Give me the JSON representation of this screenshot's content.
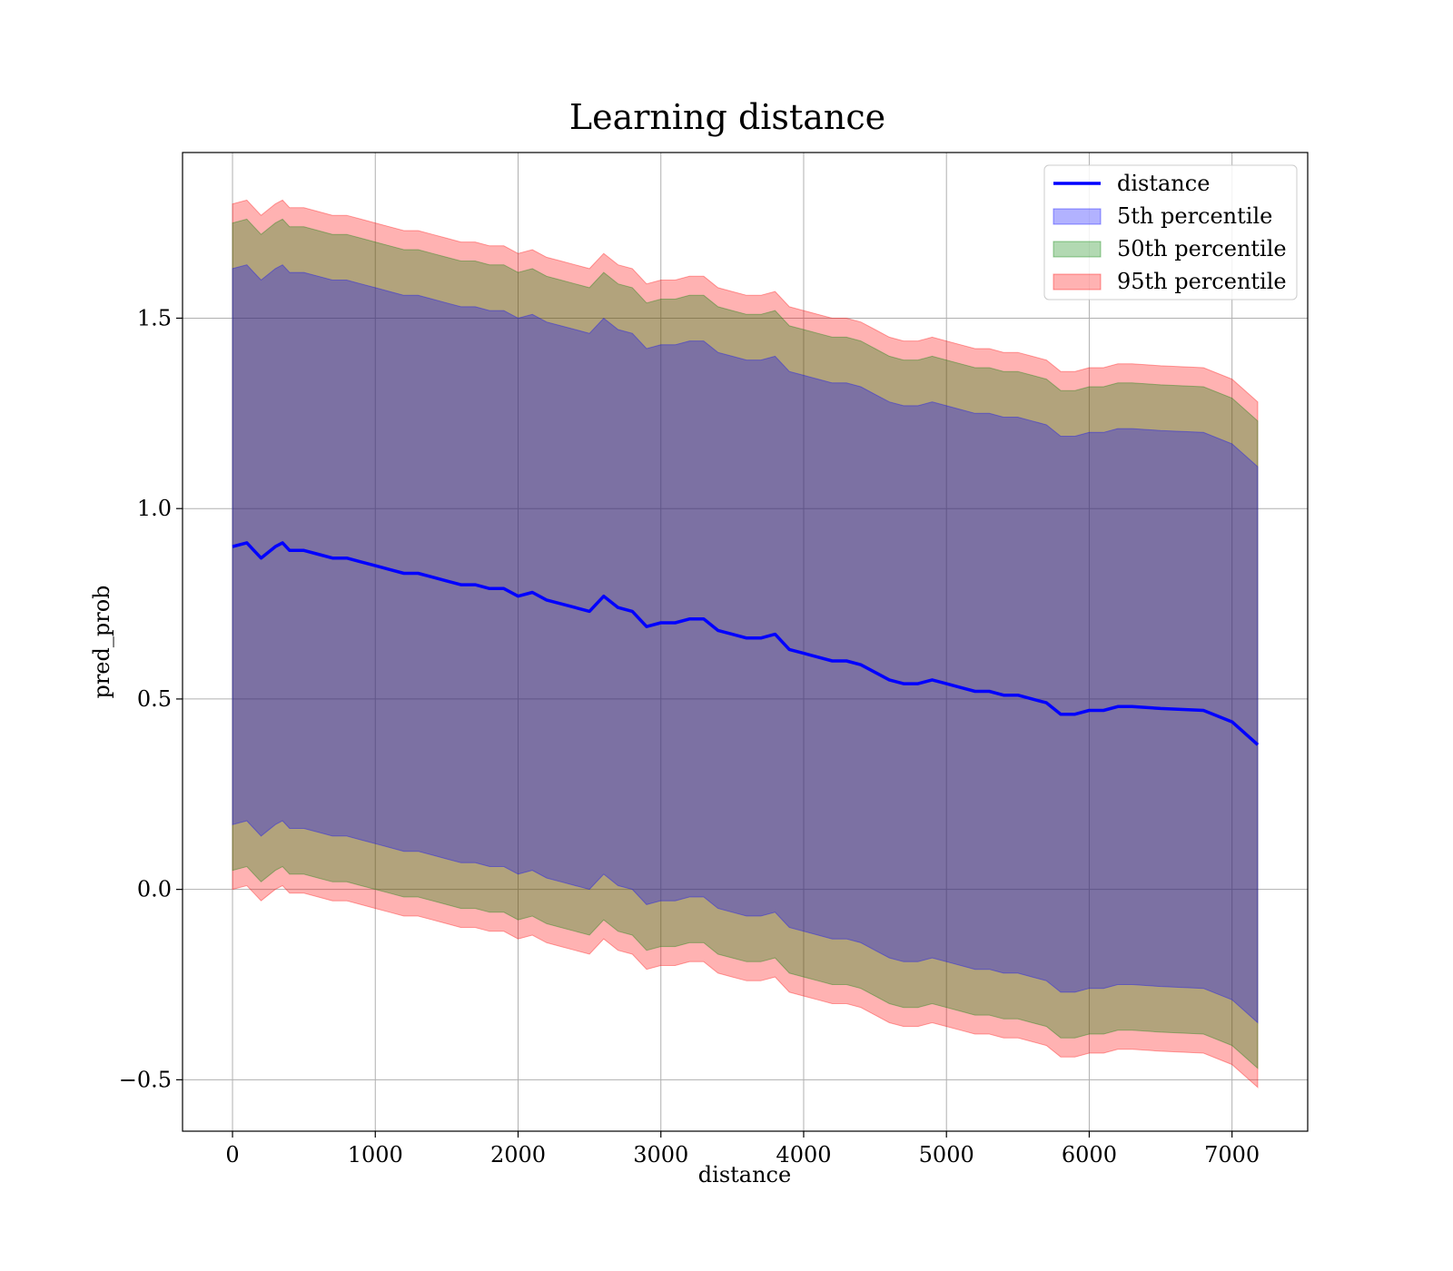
{
  "chart_data": {
    "type": "area",
    "title": "Learning distance",
    "xlabel": "distance",
    "ylabel": "pred_prob",
    "xlim": [
      -350,
      7530
    ],
    "ylim": [
      -0.635,
      1.935
    ],
    "xticks": [
      0,
      1000,
      2000,
      3000,
      4000,
      5000,
      6000,
      7000
    ],
    "xtick_labels": [
      "0",
      "1000",
      "2000",
      "3000",
      "4000",
      "5000",
      "6000",
      "7000"
    ],
    "yticks": [
      -0.5,
      0.0,
      0.5,
      1.0,
      1.5
    ],
    "ytick_labels": [
      "−0.5",
      "0.0",
      "0.5",
      "1.0",
      "1.5"
    ],
    "grid": true,
    "legend_position": "top-right",
    "x": [
      0,
      100,
      150,
      200,
      300,
      350,
      400,
      500,
      600,
      700,
      800,
      900,
      1000,
      1100,
      1200,
      1300,
      1400,
      1500,
      1600,
      1700,
      1800,
      1900,
      2000,
      2100,
      2200,
      2300,
      2400,
      2500,
      2600,
      2700,
      2800,
      2900,
      3000,
      3100,
      3200,
      3300,
      3400,
      3500,
      3600,
      3700,
      3800,
      3900,
      4000,
      4100,
      4200,
      4300,
      4400,
      4500,
      4600,
      4700,
      4800,
      4900,
      5000,
      5100,
      5200,
      5300,
      5400,
      5500,
      5600,
      5700,
      5800,
      5900,
      6000,
      6100,
      6200,
      6300,
      6500,
      6800,
      7000,
      7180
    ],
    "series": [
      {
        "name": "distance",
        "kind": "line",
        "color": "#0000ff",
        "values": [
          0.9,
          0.91,
          0.89,
          0.87,
          0.9,
          0.91,
          0.89,
          0.89,
          0.88,
          0.87,
          0.87,
          0.86,
          0.85,
          0.84,
          0.83,
          0.83,
          0.82,
          0.81,
          0.8,
          0.8,
          0.79,
          0.79,
          0.77,
          0.78,
          0.76,
          0.75,
          0.74,
          0.73,
          0.77,
          0.74,
          0.73,
          0.69,
          0.7,
          0.7,
          0.71,
          0.71,
          0.68,
          0.67,
          0.66,
          0.66,
          0.67,
          0.63,
          0.62,
          0.61,
          0.6,
          0.6,
          0.59,
          0.57,
          0.55,
          0.54,
          0.54,
          0.55,
          0.54,
          0.53,
          0.52,
          0.52,
          0.51,
          0.51,
          0.5,
          0.49,
          0.46,
          0.46,
          0.47,
          0.47,
          0.48,
          0.48,
          0.475,
          0.47,
          0.44,
          0.38
        ]
      },
      {
        "name": "5th percentile",
        "kind": "band",
        "color": "#0000ff",
        "lower": [
          0.17,
          0.18,
          0.16,
          0.14,
          0.17,
          0.18,
          0.16,
          0.16,
          0.15,
          0.14,
          0.14,
          0.13,
          0.12,
          0.11,
          0.1,
          0.1,
          0.09,
          0.08,
          0.07,
          0.07,
          0.06,
          0.06,
          0.04,
          0.05,
          0.03,
          0.02,
          0.01,
          0.0,
          0.04,
          0.01,
          0.0,
          -0.04,
          -0.03,
          -0.03,
          -0.02,
          -0.02,
          -0.05,
          -0.06,
          -0.07,
          -0.07,
          -0.06,
          -0.1,
          -0.11,
          -0.12,
          -0.13,
          -0.13,
          -0.14,
          -0.16,
          -0.18,
          -0.19,
          -0.19,
          -0.18,
          -0.19,
          -0.2,
          -0.21,
          -0.21,
          -0.22,
          -0.22,
          -0.23,
          -0.24,
          -0.27,
          -0.27,
          -0.26,
          -0.26,
          -0.25,
          -0.25,
          -0.255,
          -0.26,
          -0.29,
          -0.35
        ],
        "upper": [
          1.63,
          1.64,
          1.62,
          1.6,
          1.63,
          1.64,
          1.62,
          1.62,
          1.61,
          1.6,
          1.6,
          1.59,
          1.58,
          1.57,
          1.56,
          1.56,
          1.55,
          1.54,
          1.53,
          1.53,
          1.52,
          1.52,
          1.5,
          1.51,
          1.49,
          1.48,
          1.47,
          1.46,
          1.5,
          1.47,
          1.46,
          1.42,
          1.43,
          1.43,
          1.44,
          1.44,
          1.41,
          1.4,
          1.39,
          1.39,
          1.4,
          1.36,
          1.35,
          1.34,
          1.33,
          1.33,
          1.32,
          1.3,
          1.28,
          1.27,
          1.27,
          1.28,
          1.27,
          1.26,
          1.25,
          1.25,
          1.24,
          1.24,
          1.23,
          1.22,
          1.19,
          1.19,
          1.2,
          1.2,
          1.21,
          1.21,
          1.205,
          1.2,
          1.17,
          1.11
        ]
      },
      {
        "name": "50th percentile",
        "kind": "band",
        "color": "#008000",
        "lower": [
          0.05,
          0.06,
          0.04,
          0.02,
          0.05,
          0.06,
          0.04,
          0.04,
          0.03,
          0.02,
          0.02,
          0.01,
          0.0,
          -0.01,
          -0.02,
          -0.02,
          -0.03,
          -0.04,
          -0.05,
          -0.05,
          -0.06,
          -0.06,
          -0.08,
          -0.07,
          -0.09,
          -0.1,
          -0.11,
          -0.12,
          -0.08,
          -0.11,
          -0.12,
          -0.16,
          -0.15,
          -0.15,
          -0.14,
          -0.14,
          -0.17,
          -0.18,
          -0.19,
          -0.19,
          -0.18,
          -0.22,
          -0.23,
          -0.24,
          -0.25,
          -0.25,
          -0.26,
          -0.28,
          -0.3,
          -0.31,
          -0.31,
          -0.3,
          -0.31,
          -0.32,
          -0.33,
          -0.33,
          -0.34,
          -0.34,
          -0.35,
          -0.36,
          -0.39,
          -0.39,
          -0.38,
          -0.38,
          -0.37,
          -0.37,
          -0.375,
          -0.38,
          -0.41,
          -0.47
        ],
        "upper": [
          1.75,
          1.76,
          1.74,
          1.72,
          1.75,
          1.76,
          1.74,
          1.74,
          1.73,
          1.72,
          1.72,
          1.71,
          1.7,
          1.69,
          1.68,
          1.68,
          1.67,
          1.66,
          1.65,
          1.65,
          1.64,
          1.64,
          1.62,
          1.63,
          1.61,
          1.6,
          1.59,
          1.58,
          1.62,
          1.59,
          1.58,
          1.54,
          1.55,
          1.55,
          1.56,
          1.56,
          1.53,
          1.52,
          1.51,
          1.51,
          1.52,
          1.48,
          1.47,
          1.46,
          1.45,
          1.45,
          1.44,
          1.42,
          1.4,
          1.39,
          1.39,
          1.4,
          1.39,
          1.38,
          1.37,
          1.37,
          1.36,
          1.36,
          1.35,
          1.34,
          1.31,
          1.31,
          1.32,
          1.32,
          1.33,
          1.33,
          1.325,
          1.32,
          1.29,
          1.23
        ]
      },
      {
        "name": "95th percentile",
        "kind": "band",
        "color": "#ff0000",
        "lower": [
          0.0,
          0.01,
          -0.01,
          -0.03,
          0.0,
          0.01,
          -0.01,
          -0.01,
          -0.02,
          -0.03,
          -0.03,
          -0.04,
          -0.05,
          -0.06,
          -0.07,
          -0.07,
          -0.08,
          -0.09,
          -0.1,
          -0.1,
          -0.11,
          -0.11,
          -0.13,
          -0.12,
          -0.14,
          -0.15,
          -0.16,
          -0.17,
          -0.13,
          -0.16,
          -0.17,
          -0.21,
          -0.2,
          -0.2,
          -0.19,
          -0.19,
          -0.22,
          -0.23,
          -0.24,
          -0.24,
          -0.23,
          -0.27,
          -0.28,
          -0.29,
          -0.3,
          -0.3,
          -0.31,
          -0.33,
          -0.35,
          -0.36,
          -0.36,
          -0.35,
          -0.36,
          -0.37,
          -0.38,
          -0.38,
          -0.39,
          -0.39,
          -0.4,
          -0.41,
          -0.44,
          -0.44,
          -0.43,
          -0.43,
          -0.42,
          -0.42,
          -0.425,
          -0.43,
          -0.46,
          -0.52
        ],
        "upper": [
          1.8,
          1.81,
          1.79,
          1.77,
          1.8,
          1.81,
          1.79,
          1.79,
          1.78,
          1.77,
          1.77,
          1.76,
          1.75,
          1.74,
          1.73,
          1.73,
          1.72,
          1.71,
          1.7,
          1.7,
          1.69,
          1.69,
          1.67,
          1.68,
          1.66,
          1.65,
          1.64,
          1.63,
          1.67,
          1.64,
          1.63,
          1.59,
          1.6,
          1.6,
          1.61,
          1.61,
          1.58,
          1.57,
          1.56,
          1.56,
          1.57,
          1.53,
          1.52,
          1.51,
          1.5,
          1.5,
          1.49,
          1.47,
          1.45,
          1.44,
          1.44,
          1.45,
          1.44,
          1.43,
          1.42,
          1.42,
          1.41,
          1.41,
          1.4,
          1.39,
          1.36,
          1.36,
          1.37,
          1.37,
          1.38,
          1.38,
          1.375,
          1.37,
          1.34,
          1.28
        ]
      }
    ]
  }
}
